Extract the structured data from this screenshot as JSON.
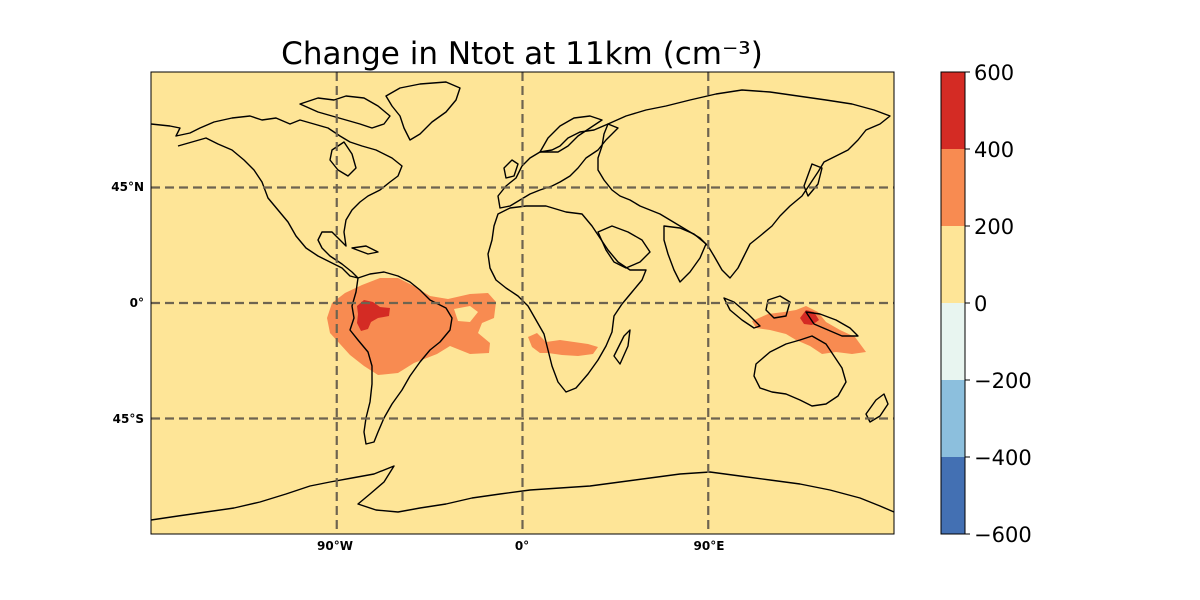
{
  "title": "Change in Ntot at 11km (cm⁻³)",
  "map": {
    "background_color": "#fee597",
    "lat_labels": [
      "45°N",
      "0°",
      "45°S"
    ],
    "lon_labels": [
      "90°W",
      "0°",
      "90°E"
    ],
    "grid_lons": [
      -90,
      0,
      90
    ],
    "grid_lats": [
      45,
      0,
      -45
    ],
    "lon_range": [
      -180,
      180
    ],
    "lat_range": [
      -90,
      90
    ],
    "projection": "PlateCarree",
    "gridlines": "dashed",
    "regions": [
      {
        "name": "south-america-tropics",
        "level": "200-400",
        "color": "#f88b51"
      },
      {
        "name": "amazon-core",
        "level": "400-600",
        "color": "#d42b24"
      },
      {
        "name": "southern-africa",
        "level": "200-400",
        "color": "#f88b51"
      },
      {
        "name": "maritime-continent",
        "level": "200-400",
        "color": "#f88b51"
      },
      {
        "name": "new-guinea-core",
        "level": "400-600",
        "color": "#d42b24"
      }
    ]
  },
  "colorbar": {
    "labels": [
      "600",
      "400",
      "200",
      "0",
      "−200",
      "−400",
      "−600"
    ],
    "levels": [
      -600,
      -400,
      -200,
      0,
      200,
      400,
      600
    ],
    "colors": [
      "#4370b3",
      "#8cbfdd",
      "#e8f5f0",
      "#fee597",
      "#f88b51",
      "#d42b24"
    ]
  }
}
